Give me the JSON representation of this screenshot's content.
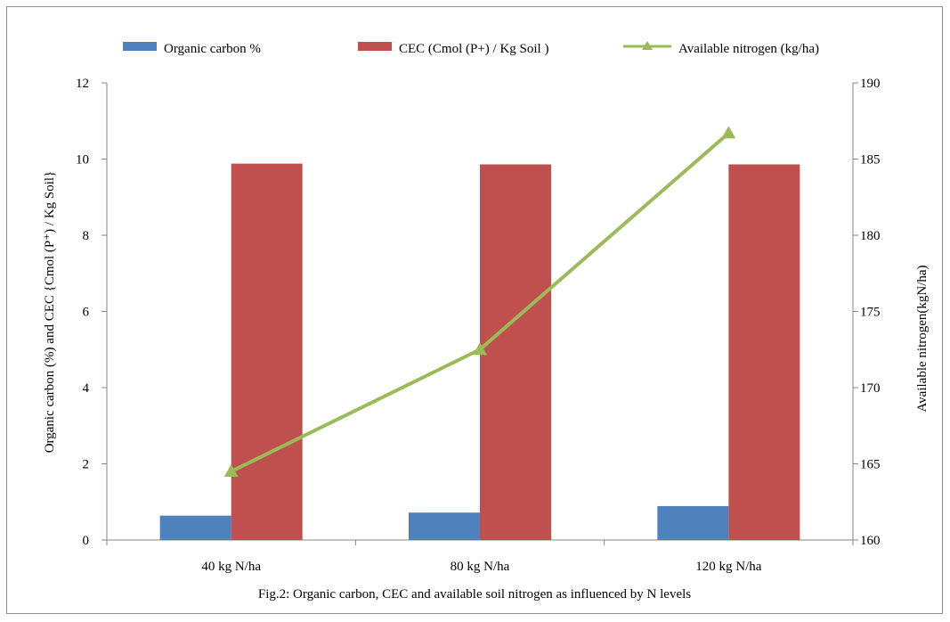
{
  "chart_data": {
    "type": "bar",
    "title": "",
    "caption": "Fig.2: Organic carbon, CEC and available soil nitrogen as influenced by N levels",
    "categories": [
      "40 kg N/ha",
      "80 kg N/ha",
      "120 kg N/ha"
    ],
    "series": [
      {
        "name": "Organic carbon %",
        "type": "bar",
        "axis": "left",
        "color": "#4f81bd",
        "values": [
          0.64,
          0.72,
          0.89
        ]
      },
      {
        "name": "CEC (Cmol (P+) / Kg Soil )",
        "type": "bar",
        "axis": "left",
        "color": "#c0504d",
        "values": [
          9.88,
          9.86,
          9.86
        ]
      },
      {
        "name": "Available nitrogen (kg/ha)",
        "type": "line",
        "axis": "right",
        "color": "#9bbb59",
        "marker": "triangle",
        "values": [
          164.5,
          172.5,
          186.7
        ]
      }
    ],
    "ylabel": "Organic carbon (%) and CEC {Cmol (P⁺) / Kg Soil}",
    "y2label": "Available nitrogen(kgN/ha)",
    "ylim": [
      0,
      12
    ],
    "y2lim": [
      160,
      190
    ],
    "yticks": [
      "0",
      "2",
      "4",
      "6",
      "8",
      "10",
      "12"
    ],
    "y2ticks": [
      "160",
      "165",
      "170",
      "175",
      "180",
      "185",
      "190"
    ],
    "grid": false,
    "legend_position": "top"
  }
}
